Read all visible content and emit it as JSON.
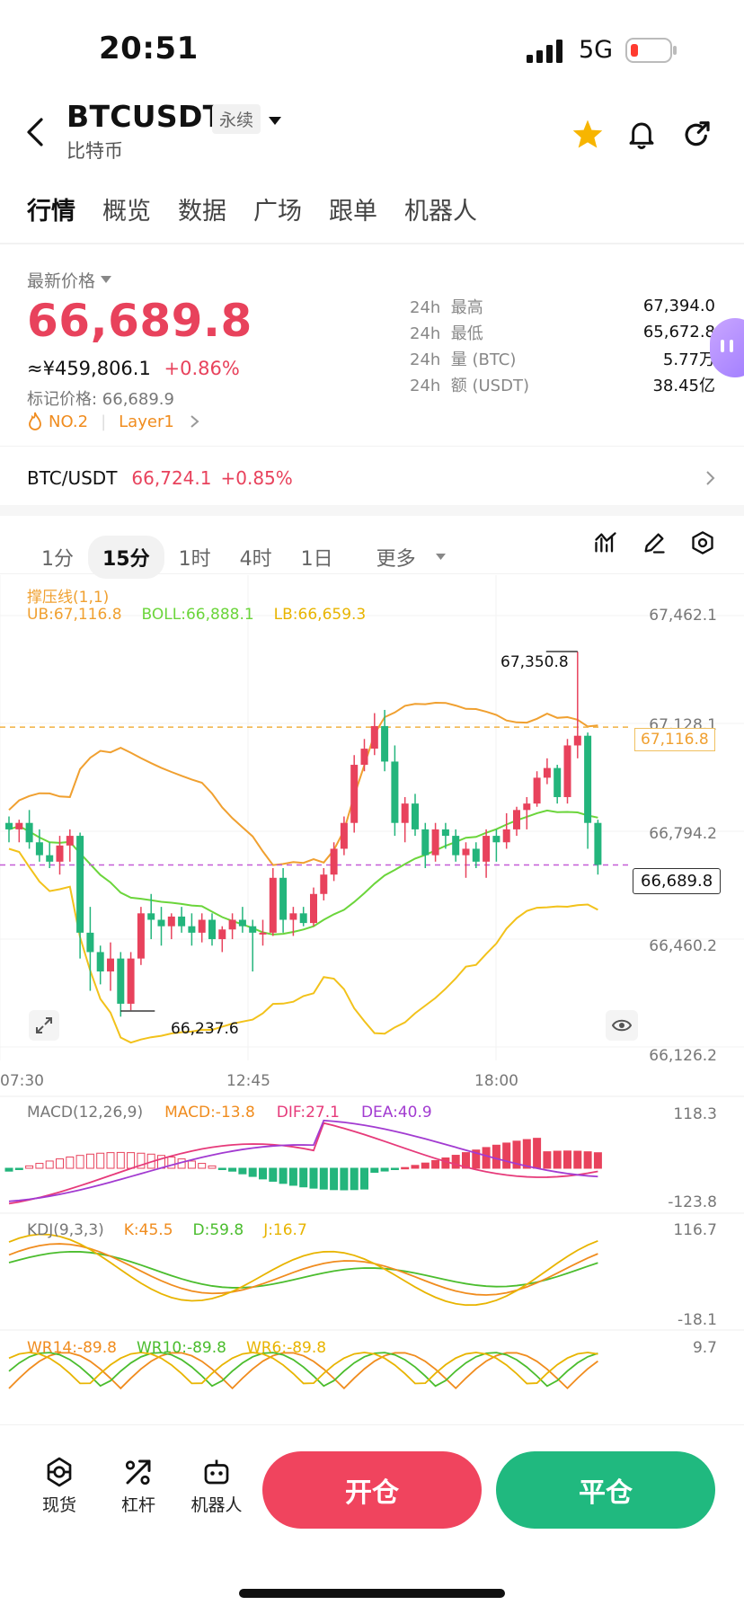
{
  "status": {
    "time": "20:51",
    "network": "5G"
  },
  "header": {
    "symbol": "BTCUSDT",
    "tag": "永续",
    "subtitle": "比特币"
  },
  "tabs": [
    "行情",
    "概览",
    "数据",
    "广场",
    "跟单",
    "机器人"
  ],
  "price": {
    "label": "最新价格",
    "last": "66,689.8",
    "cny": "≈¥459,806.1",
    "change": "+0.86%",
    "mark": "标记价格: 66,689.9",
    "rank": "NO.2",
    "category": "Layer1"
  },
  "stats": [
    {
      "period": "24h",
      "label": "最高",
      "value": "67,394.0"
    },
    {
      "period": "24h",
      "label": "最低",
      "value": "65,672.8"
    },
    {
      "period": "24h",
      "label": "量 (BTC)",
      "value": "5.77万"
    },
    {
      "period": "24h",
      "label": "额 (USDT)",
      "value": "38.45亿"
    }
  ],
  "spot": {
    "pair": "BTC/USDT",
    "price": "66,724.1",
    "change": "+0.85%"
  },
  "intervals": [
    "1分",
    "15分",
    "1时",
    "4时",
    "1日",
    "更多"
  ],
  "indicators": {
    "support": "撑压线(1,1)",
    "ub": "UB:67,116.8",
    "boll": "BOLL:66,888.1",
    "lb": "LB:66,659.3",
    "macd_name": "MACD(12,26,9)",
    "macd": "MACD:-13.8",
    "dif": "DIF:27.1",
    "dea": "DEA:40.9",
    "kdj_name": "KDJ(9,3,3)",
    "k": "K:45.5",
    "d": "D:59.8",
    "j": "J:16.7",
    "wr14": "WR14:-89.8",
    "wr10": "WR10:-89.8",
    "wr6": "WR6:-89.8"
  },
  "chart_data": {
    "type": "candlestick",
    "y_axis_labels": [
      "67,462.1",
      "67,128.1",
      "66,794.2",
      "66,460.2",
      "66,126.2"
    ],
    "x_axis_labels": [
      "07:30",
      "12:45",
      "18:00"
    ],
    "high_marker": "67,350.8",
    "low_marker": "66,237.6",
    "ub_tag": "67,116.8",
    "last_tag": "66,689.8",
    "macd_range": [
      "118.3",
      "-123.8"
    ],
    "kdj_range": [
      "116.7",
      "-18.1"
    ],
    "wr_top": "9.7",
    "ylim": [
      66126.2,
      67462.1
    ],
    "candles": [
      [
        66820,
        66840,
        66760,
        66800
      ],
      [
        66800,
        66830,
        66760,
        66820
      ],
      [
        66820,
        66860,
        66740,
        66760
      ],
      [
        66760,
        66800,
        66700,
        66720
      ],
      [
        66720,
        66760,
        66680,
        66700
      ],
      [
        66700,
        66780,
        66660,
        66750
      ],
      [
        66750,
        66800,
        66700,
        66780
      ],
      [
        66780,
        66790,
        66400,
        66480
      ],
      [
        66480,
        66560,
        66300,
        66420
      ],
      [
        66420,
        66440,
        66320,
        66360
      ],
      [
        66360,
        66450,
        66300,
        66400
      ],
      [
        66400,
        66420,
        66220,
        66260
      ],
      [
        66260,
        66420,
        66240,
        66400
      ],
      [
        66400,
        66560,
        66380,
        66540
      ],
      [
        66540,
        66600,
        66460,
        66520
      ],
      [
        66520,
        66560,
        66440,
        66500
      ],
      [
        66500,
        66540,
        66460,
        66530
      ],
      [
        66530,
        66560,
        66480,
        66500
      ],
      [
        66500,
        66540,
        66440,
        66480
      ],
      [
        66480,
        66540,
        66450,
        66520
      ],
      [
        66520,
        66540,
        66440,
        66460
      ],
      [
        66460,
        66500,
        66420,
        66490
      ],
      [
        66490,
        66540,
        66460,
        66520
      ],
      [
        66520,
        66560,
        66480,
        66500
      ],
      [
        66500,
        66520,
        66360,
        66480
      ],
      [
        66480,
        66520,
        66440,
        66480
      ],
      [
        66480,
        66680,
        66470,
        66650
      ],
      [
        66650,
        66680,
        66480,
        66520
      ],
      [
        66520,
        66560,
        66470,
        66540
      ],
      [
        66540,
        66560,
        66500,
        66510
      ],
      [
        66510,
        66620,
        66500,
        66600
      ],
      [
        66600,
        66680,
        66580,
        66660
      ],
      [
        66660,
        66760,
        66640,
        66740
      ],
      [
        66740,
        66840,
        66720,
        66820
      ],
      [
        66820,
        67030,
        66790,
        67000
      ],
      [
        67000,
        67080,
        66980,
        67050
      ],
      [
        67050,
        67160,
        67030,
        67120
      ],
      [
        67120,
        67170,
        66980,
        67010
      ],
      [
        67010,
        67060,
        66780,
        66820
      ],
      [
        66820,
        66900,
        66760,
        66880
      ],
      [
        66880,
        66910,
        66780,
        66800
      ],
      [
        66800,
        66820,
        66680,
        66720
      ],
      [
        66720,
        66820,
        66700,
        66800
      ],
      [
        66800,
        66820,
        66740,
        66780
      ],
      [
        66780,
        66800,
        66700,
        66720
      ],
      [
        66720,
        66760,
        66650,
        66740
      ],
      [
        66740,
        66760,
        66680,
        66700
      ],
      [
        66700,
        66800,
        66650,
        66780
      ],
      [
        66780,
        66800,
        66700,
        66760
      ],
      [
        66760,
        66850,
        66740,
        66800
      ],
      [
        66800,
        66870,
        66780,
        66860
      ],
      [
        66860,
        66900,
        66800,
        66880
      ],
      [
        66880,
        66980,
        66870,
        66960
      ],
      [
        66960,
        67020,
        66940,
        66990
      ],
      [
        66990,
        67000,
        66880,
        66900
      ],
      [
        66900,
        67080,
        66880,
        67060
      ],
      [
        67060,
        67350,
        67020,
        67090
      ],
      [
        67090,
        67100,
        66740,
        66820
      ],
      [
        66820,
        66830,
        66660,
        66690
      ]
    ]
  },
  "bottom": {
    "spot": "现货",
    "leverage": "杠杆",
    "robot": "机器人",
    "open": "开仓",
    "close": "平仓"
  },
  "colors": {
    "up": "#e8425c",
    "down": "#23b57c",
    "ub": "#f0a030",
    "mid": "#6bd53b",
    "lb": "#f2c21b"
  }
}
